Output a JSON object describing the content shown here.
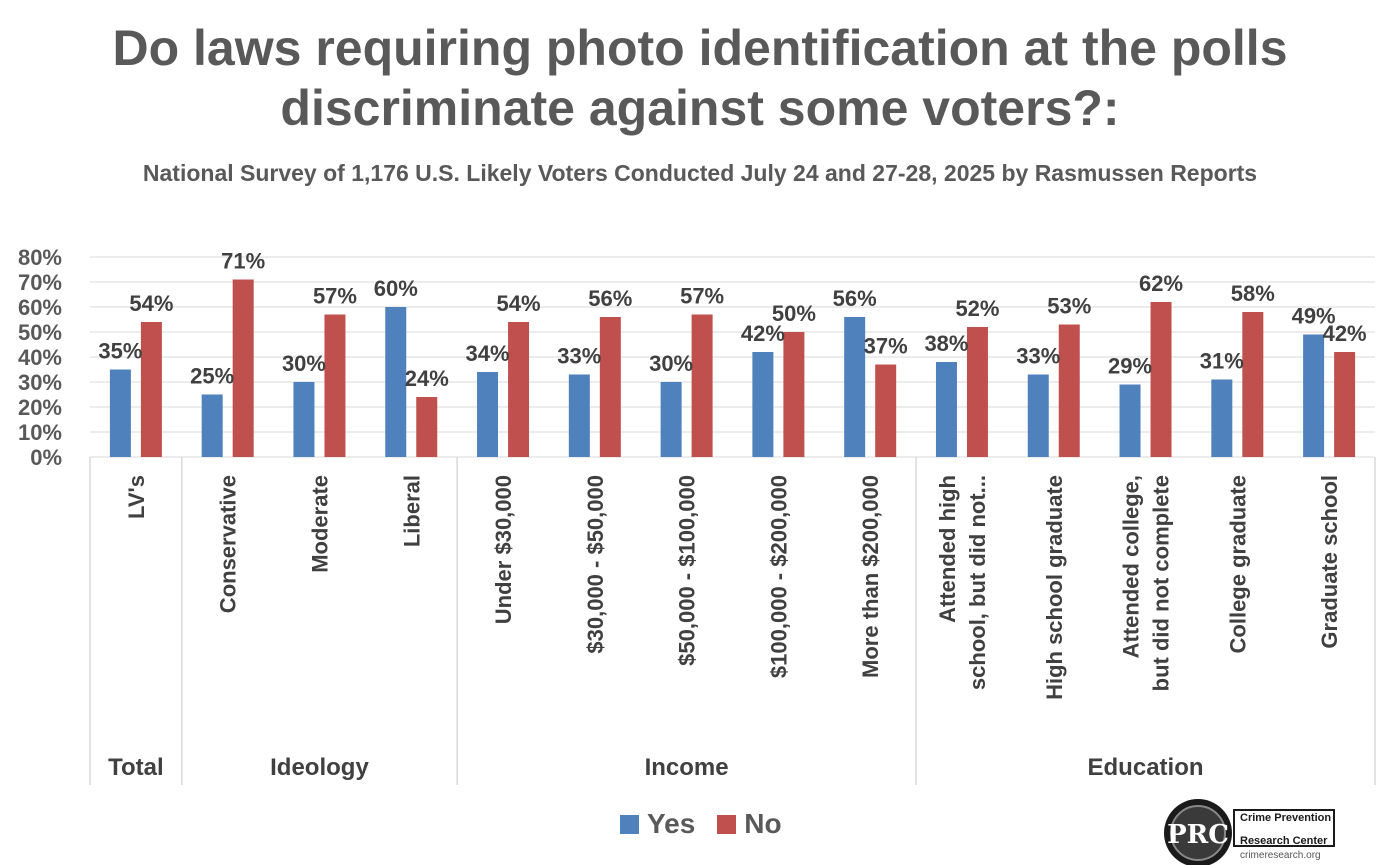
{
  "title": "Do laws requiring photo identification at the polls discriminate against some voters?:",
  "subtitle": "National Survey of 1,176 U.S. Likely Voters Conducted July 24 and 27-28, 2025 by Rasmussen Reports",
  "colors": {
    "yes": "#4F81BD",
    "no": "#C0504D",
    "grid": "#D9D9D9"
  },
  "legend": {
    "yes": "Yes",
    "no": "No"
  },
  "logo": {
    "icon": "magnifier-logo-icon",
    "mark": "PRC",
    "line1": "Crime Prevention",
    "line2": "Research Center",
    "line3": "crimeresearch.org"
  },
  "chart_data": {
    "type": "bar",
    "title": "Do laws requiring photo identification at the polls discriminate against some voters?:",
    "subtitle": "National Survey of 1,176 U.S. Likely Voters Conducted July 24 and 27-28, 2025 by Rasmussen Reports",
    "categories": [
      "LV's",
      "Conservative",
      "Moderate",
      "Liberal",
      "Under $30,000",
      "$30,000 - $50,000",
      "$50,000 - $100,000",
      "$100,000 - $200,000",
      "More than $200,000",
      "Attended high school, but did not...",
      "High school graduate",
      "Attended college, but did not complete",
      "College graduate",
      "Graduate school"
    ],
    "category_lines": [
      [
        "LV's"
      ],
      [
        "Conservative"
      ],
      [
        "Moderate"
      ],
      [
        "Liberal"
      ],
      [
        "Under $30,000"
      ],
      [
        "$30,000 - $50,000"
      ],
      [
        "$50,000 - $100,000"
      ],
      [
        "$100,000 - $200,000"
      ],
      [
        "More than $200,000"
      ],
      [
        "Attended high",
        "school, but did not..."
      ],
      [
        "High school graduate"
      ],
      [
        "Attended college,",
        "but did not complete"
      ],
      [
        "College graduate"
      ],
      [
        "Graduate school"
      ]
    ],
    "groups": [
      {
        "label": "Total",
        "start": 0,
        "end": 0
      },
      {
        "label": "Ideology",
        "start": 1,
        "end": 3
      },
      {
        "label": "Income",
        "start": 4,
        "end": 8
      },
      {
        "label": "Education",
        "start": 9,
        "end": 13
      }
    ],
    "series": [
      {
        "name": "Yes",
        "values": [
          35,
          25,
          30,
          60,
          34,
          33,
          30,
          42,
          56,
          38,
          33,
          29,
          31,
          49
        ]
      },
      {
        "name": "No",
        "values": [
          54,
          71,
          57,
          24,
          54,
          56,
          57,
          50,
          37,
          52,
          53,
          62,
          58,
          42
        ]
      }
    ],
    "ylim": [
      0,
      80
    ],
    "yticks": [
      0,
      10,
      20,
      30,
      40,
      50,
      60,
      70,
      80
    ],
    "value_suffix": "%",
    "grid": true,
    "legend_position": "bottom"
  }
}
